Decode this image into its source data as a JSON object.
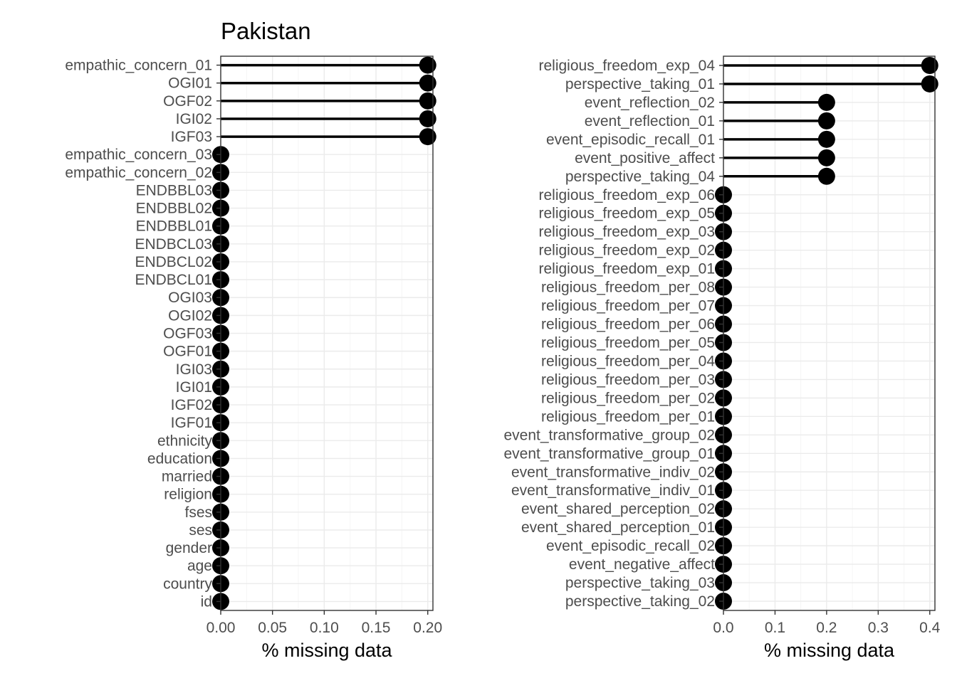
{
  "title": "Pakistan",
  "colors": {
    "point": "#000000",
    "grid_major": "#ebebeb",
    "grid_minor": "#f5f5f5",
    "panel_border": "#333333",
    "text": "#4d4d4d"
  },
  "chart_data": [
    {
      "type": "lollipop",
      "title": "Pakistan",
      "xlabel": "% missing data",
      "xlim": [
        0,
        0.205
      ],
      "xticks": [
        0,
        0.05,
        0.1,
        0.15,
        0.2
      ],
      "xtick_labels": [
        "0.00",
        "0.05",
        "0.10",
        "0.15",
        "0.20"
      ],
      "grid": true,
      "categories": [
        "empathic_concern_01",
        "OGI01",
        "OGF02",
        "IGI02",
        "IGF03",
        "empathic_concern_03",
        "empathic_concern_02",
        "ENDBBL03",
        "ENDBBL02",
        "ENDBBL01",
        "ENDBCL03",
        "ENDBCL02",
        "ENDBCL01",
        "OGI03",
        "OGI02",
        "OGF03",
        "OGF01",
        "IGI03",
        "IGI01",
        "IGF02",
        "IGF01",
        "ethnicity",
        "education",
        "married",
        "religion",
        "fses",
        "ses",
        "gender",
        "age",
        "country",
        "id"
      ],
      "values": [
        0.2,
        0.2,
        0.2,
        0.2,
        0.2,
        0,
        0,
        0,
        0,
        0,
        0,
        0,
        0,
        0,
        0,
        0,
        0,
        0,
        0,
        0,
        0,
        0,
        0,
        0,
        0,
        0,
        0,
        0,
        0,
        0,
        0
      ]
    },
    {
      "type": "lollipop",
      "xlabel": "% missing data",
      "xlim": [
        0,
        0.41
      ],
      "xticks": [
        0,
        0.1,
        0.2,
        0.3,
        0.4
      ],
      "xtick_labels": [
        "0.0",
        "0.1",
        "0.2",
        "0.3",
        "0.4"
      ],
      "grid": true,
      "categories": [
        "religious_freedom_exp_04",
        "perspective_taking_01",
        "event_reflection_02",
        "event_reflection_01",
        "event_episodic_recall_01",
        "event_positive_affect",
        "perspective_taking_04",
        "religious_freedom_exp_06",
        "religious_freedom_exp_05",
        "religious_freedom_exp_03",
        "religious_freedom_exp_02",
        "religious_freedom_exp_01",
        "religious_freedom_per_08",
        "religious_freedom_per_07",
        "religious_freedom_per_06",
        "religious_freedom_per_05",
        "religious_freedom_per_04",
        "religious_freedom_per_03",
        "religious_freedom_per_02",
        "religious_freedom_per_01",
        "event_transformative_group_02",
        "event_transformative_group_01",
        "event_transformative_indiv_02",
        "event_transformative_indiv_01",
        "event_shared_perception_02",
        "event_shared_perception_01",
        "event_episodic_recall_02",
        "event_negative_affect",
        "perspective_taking_03",
        "perspective_taking_02"
      ],
      "values": [
        0.4,
        0.4,
        0.2,
        0.2,
        0.2,
        0.2,
        0.2,
        0,
        0,
        0,
        0,
        0,
        0,
        0,
        0,
        0,
        0,
        0,
        0,
        0,
        0,
        0,
        0,
        0,
        0,
        0,
        0,
        0,
        0,
        0
      ]
    }
  ]
}
